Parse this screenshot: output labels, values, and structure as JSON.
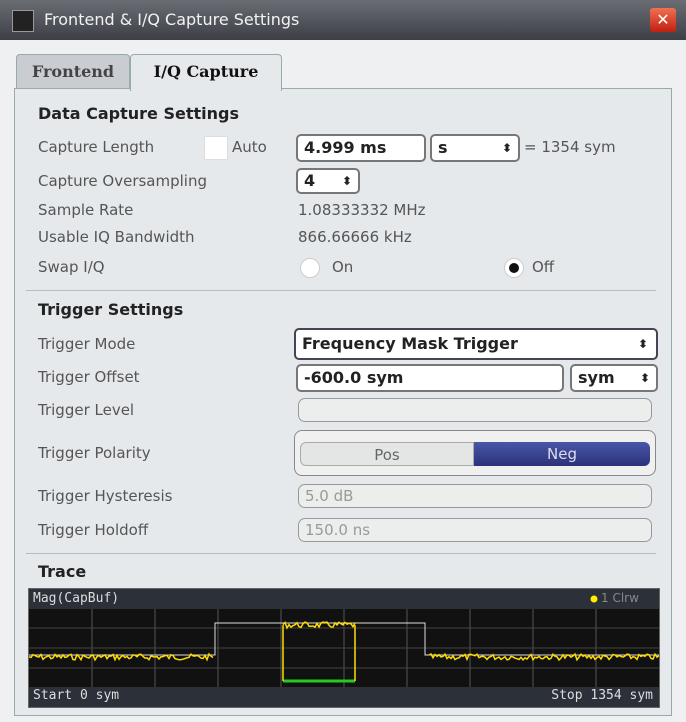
{
  "window": {
    "title": "Frontend & I/Q Capture Settings"
  },
  "tabs": [
    "Frontend",
    "I/Q Capture"
  ],
  "data_capture": {
    "heading": "Data Capture Settings",
    "capture_length": {
      "label": "Capture Length",
      "auto_label": "Auto",
      "value": "4.999 ms",
      "unit": "s",
      "equals": "= 1354 sym"
    },
    "capture_oversampling": {
      "label": "Capture Oversampling",
      "value": "4"
    },
    "sample_rate": {
      "label": "Sample Rate",
      "value": "1.08333332 MHz"
    },
    "usable_bandwidth": {
      "label": "Usable IQ Bandwidth",
      "value": "866.66666 kHz"
    },
    "swap_iq": {
      "label": "Swap I/Q",
      "on": "On",
      "off": "Off"
    }
  },
  "trigger": {
    "heading": "Trigger Settings",
    "mode": {
      "label": "Trigger Mode",
      "value": "Frequency Mask Trigger"
    },
    "offset": {
      "label": "Trigger Offset",
      "value": "-600.0 sym",
      "unit": "sym"
    },
    "level": {
      "label": "Trigger Level"
    },
    "polarity": {
      "label": "Trigger Polarity",
      "pos": "Pos",
      "neg": "Neg"
    },
    "hysteresis": {
      "label": "Trigger Hysteresis",
      "value": "5.0 dB"
    },
    "holdoff": {
      "label": "Trigger Holdoff",
      "value": "150.0 ns"
    }
  },
  "trace": {
    "heading": "Trace",
    "title": "Mag(CapBuf)",
    "legend": "1 Clrw",
    "start": "Start 0 sym",
    "stop": "Stop 1354 sym"
  }
}
